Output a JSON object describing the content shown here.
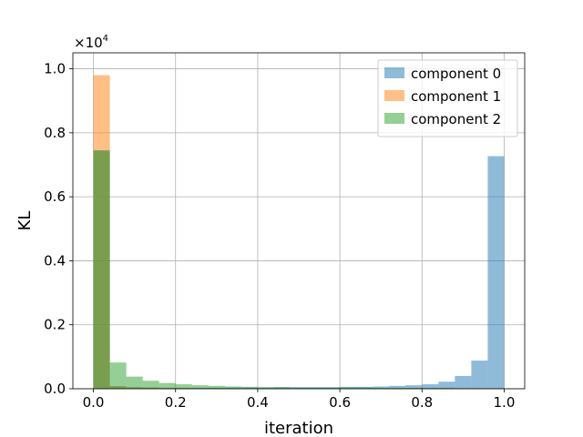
{
  "chart_data": {
    "type": "bar",
    "title": "",
    "xlabel": "iteration",
    "ylabel": "KL",
    "y_multiplier_label": "×10",
    "y_multiplier_exp": "4",
    "y_scale_factor": 10000,
    "xlim": [
      -0.05,
      1.05
    ],
    "ylim": [
      0,
      10500
    ],
    "xticks": [
      0.0,
      0.2,
      0.4,
      0.6,
      0.8,
      1.0
    ],
    "xtick_labels": [
      "0.0",
      "0.2",
      "0.4",
      "0.6",
      "0.8",
      "1.0"
    ],
    "yticks": [
      0,
      2000,
      4000,
      6000,
      8000,
      10000
    ],
    "ytick_labels": [
      "0.0",
      "0.2",
      "0.4",
      "0.6",
      "0.8",
      "1.0"
    ],
    "grid": true,
    "legend_position": "top-right",
    "bin_edges": [
      0.0,
      0.04,
      0.08,
      0.12,
      0.16,
      0.2,
      0.24,
      0.28,
      0.32,
      0.36,
      0.4,
      0.44,
      0.48,
      0.52,
      0.56,
      0.6,
      0.64,
      0.68,
      0.72,
      0.76,
      0.8,
      0.84,
      0.88,
      0.92,
      0.96,
      1.0
    ],
    "series": [
      {
        "name": "component 0",
        "color": "#1f77b4",
        "alpha": 0.5,
        "values": [
          7450,
          80,
          50,
          40,
          30,
          30,
          30,
          30,
          40,
          40,
          40,
          50,
          50,
          50,
          50,
          60,
          60,
          70,
          90,
          110,
          140,
          220,
          400,
          880,
          7270
        ]
      },
      {
        "name": "component 1",
        "color": "#ff7f0e",
        "alpha": 0.5,
        "values": [
          9800,
          80,
          40,
          30,
          20,
          20,
          10,
          10,
          10,
          10,
          10,
          10,
          10,
          10,
          10,
          10,
          10,
          10,
          10,
          10,
          10,
          10,
          10,
          10,
          10
        ]
      },
      {
        "name": "component 2",
        "color": "#2ca02c",
        "alpha": 0.5,
        "values": [
          7450,
          820,
          380,
          250,
          180,
          140,
          110,
          90,
          70,
          60,
          50,
          50,
          40,
          40,
          40,
          40,
          40,
          30,
          30,
          30,
          30,
          30,
          20,
          20,
          20
        ]
      }
    ]
  }
}
